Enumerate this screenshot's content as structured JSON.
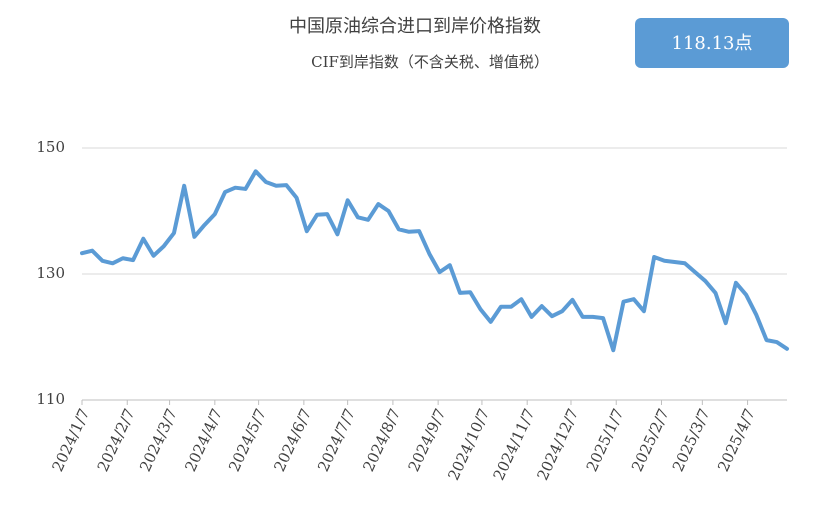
{
  "chart_data": {
    "type": "line",
    "title": "中国原油综合进口到岸价格指数",
    "subtitle": "CIF到岸指数（不含关税、增值税）",
    "annotation": "118.13点",
    "x": [
      "2024/1/7",
      "2024/1/14",
      "2024/1/21",
      "2024/1/28",
      "2024/2/4",
      "2024/2/11",
      "2024/2/18",
      "2024/2/25",
      "2024/3/3",
      "2024/3/10",
      "2024/3/17",
      "2024/3/24",
      "2024/3/31",
      "2024/4/7",
      "2024/4/14",
      "2024/4/21",
      "2024/4/28",
      "2024/5/5",
      "2024/5/12",
      "2024/5/19",
      "2024/5/26",
      "2024/6/2",
      "2024/6/9",
      "2024/6/16",
      "2024/6/23",
      "2024/6/30",
      "2024/7/7",
      "2024/7/14",
      "2024/7/21",
      "2024/7/28",
      "2024/8/4",
      "2024/8/11",
      "2024/8/18",
      "2024/8/25",
      "2024/9/1",
      "2024/9/8",
      "2024/9/15",
      "2024/9/22",
      "2024/9/29",
      "2024/10/6",
      "2024/10/13",
      "2024/10/20",
      "2024/10/27",
      "2024/11/3",
      "2024/11/10",
      "2024/11/17",
      "2024/11/24",
      "2024/12/1",
      "2024/12/8",
      "2024/12/15",
      "2024/12/22",
      "2024/12/29",
      "2025/1/5",
      "2025/1/12",
      "2025/1/19",
      "2025/1/26",
      "2025/2/2",
      "2025/2/9",
      "2025/2/16",
      "2025/2/23",
      "2025/3/2",
      "2025/3/9",
      "2025/3/16",
      "2025/3/23",
      "2025/3/30",
      "2025/4/6",
      "2025/4/13",
      "2025/4/20",
      "2025/4/27",
      "2025/5/4"
    ],
    "series": [
      {
        "name": "CIF到岸指数",
        "color": "#5b9bd5",
        "values": [
          133.3,
          133.7,
          132.1,
          131.7,
          132.5,
          132.2,
          135.6,
          132.9,
          134.4,
          136.5,
          144.0,
          135.9,
          137.8,
          139.5,
          143.0,
          143.7,
          143.5,
          146.3,
          144.6,
          144.0,
          144.1,
          142.1,
          136.8,
          139.4,
          139.5,
          136.3,
          141.7,
          139.0,
          138.6,
          141.1,
          140.0,
          137.1,
          136.7,
          136.8,
          133.2,
          130.3,
          131.4,
          127.0,
          127.1,
          124.4,
          122.4,
          124.8,
          124.8,
          126.0,
          123.2,
          124.9,
          123.3,
          124.1,
          125.9,
          123.2,
          123.2,
          123.0,
          117.9,
          125.6,
          126.0,
          124.1,
          132.7,
          132.1,
          131.9,
          131.7,
          130.3,
          128.9,
          127.0,
          122.2,
          128.6,
          126.7,
          123.5,
          119.5,
          119.2,
          118.13
        ]
      }
    ],
    "xlim": [
      "2024/1/7",
      "2025/5/4"
    ],
    "xticks": [
      "2024/1/7",
      "2024/2/7",
      "2024/3/7",
      "2024/4/7",
      "2024/5/7",
      "2024/6/7",
      "2024/7/7",
      "2024/8/7",
      "2024/9/7",
      "2024/10/7",
      "2024/11/7",
      "2024/12/7",
      "2025/1/7",
      "2025/2/7",
      "2025/3/7",
      "2025/4/7"
    ],
    "ylim": [
      110,
      150
    ],
    "yticks": [
      110,
      130,
      150
    ],
    "grid": true
  }
}
